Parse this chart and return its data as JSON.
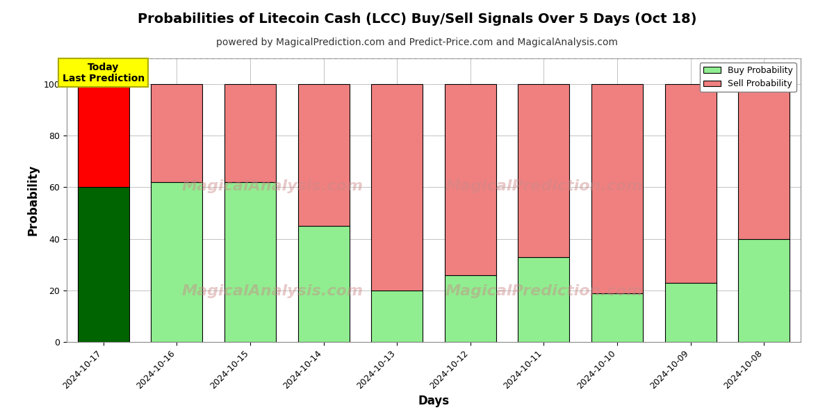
{
  "title": "Probabilities of Litecoin Cash (LCC) Buy/Sell Signals Over 5 Days (Oct 18)",
  "subtitle": "powered by MagicalPrediction.com and Predict-Price.com and MagicalAnalysis.com",
  "xlabel": "Days",
  "ylabel": "Probability",
  "days": [
    "2024-10-17",
    "2024-10-16",
    "2024-10-15",
    "2024-10-14",
    "2024-10-13",
    "2024-10-12",
    "2024-10-11",
    "2024-10-10",
    "2024-10-09",
    "2024-10-08"
  ],
  "buy_values": [
    60,
    62,
    62,
    45,
    20,
    26,
    33,
    19,
    23,
    40
  ],
  "sell_values": [
    40,
    38,
    38,
    55,
    80,
    74,
    67,
    81,
    77,
    60
  ],
  "today_buy_color": "#006400",
  "today_sell_color": "#FF0000",
  "buy_color": "#90EE90",
  "sell_color": "#F08080",
  "bar_edge_color": "#000000",
  "ylim": [
    0,
    110
  ],
  "yticks": [
    0,
    20,
    40,
    60,
    80,
    100
  ],
  "dashed_line_y": 110,
  "today_label_text": "Today\nLast Prediction",
  "today_label_bg": "#FFFF00",
  "legend_buy_label": "Buy Probability",
  "legend_sell_label": "Sell Probability",
  "background_color": "#ffffff",
  "grid_color": "#aaaaaa",
  "title_fontsize": 14,
  "subtitle_fontsize": 10,
  "axis_label_fontsize": 12,
  "tick_fontsize": 9,
  "watermark1": "MagicalAnalysis.com",
  "watermark2": "MagicalPrediction.com"
}
